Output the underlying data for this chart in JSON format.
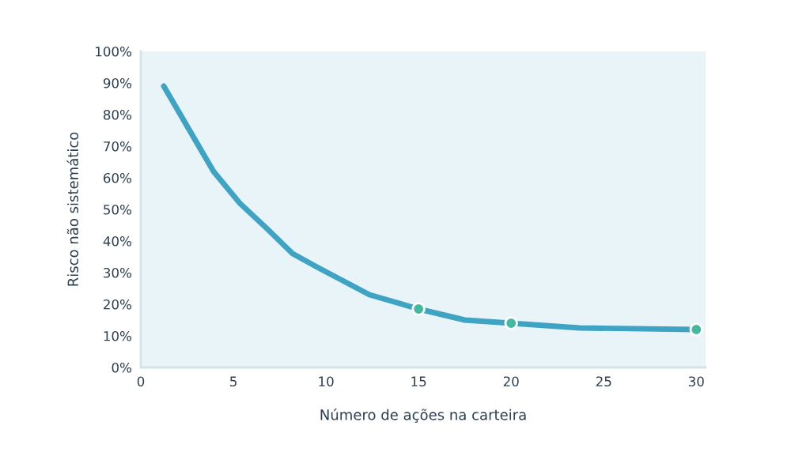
{
  "chart_data": {
    "type": "line",
    "xlabel": "Número de ações na carteira",
    "ylabel": "Risco não sistemático",
    "xlim": [
      0,
      30.5
    ],
    "xticks": [
      0,
      5,
      10,
      15,
      20,
      25,
      30
    ],
    "ylim": [
      0,
      100
    ],
    "yticks": [
      {
        "value": 0,
        "label": "0%"
      },
      {
        "value": 10,
        "label": "10%"
      },
      {
        "value": 20,
        "label": "20%"
      },
      {
        "value": 30,
        "label": "30%"
      },
      {
        "value": 40,
        "label": "40%"
      },
      {
        "value": 50,
        "label": "50%"
      },
      {
        "value": 60,
        "label": "60%"
      },
      {
        "value": 70,
        "label": "70%"
      },
      {
        "value": 80,
        "label": "80%"
      },
      {
        "value": 90,
        "label": "90%"
      },
      {
        "value": 100,
        "label": "100%"
      }
    ],
    "grid": false,
    "legend": false,
    "series": [
      {
        "color": "#3fa3c4",
        "marker": "none",
        "x": [
          1.24,
          3.93,
          5.34,
          6.8,
          8.2,
          9.6,
          12.35,
          15,
          17.5,
          20,
          23.7,
          30
        ],
        "values": [
          89,
          62,
          52,
          44,
          36,
          31.5,
          23,
          18.5,
          15,
          14,
          12.5,
          12
        ]
      },
      {
        "type": "scatter",
        "color": "#45b8a0",
        "marker": "circle",
        "x": [
          15,
          20,
          30
        ],
        "values": [
          18.5,
          14,
          12
        ]
      }
    ]
  }
}
